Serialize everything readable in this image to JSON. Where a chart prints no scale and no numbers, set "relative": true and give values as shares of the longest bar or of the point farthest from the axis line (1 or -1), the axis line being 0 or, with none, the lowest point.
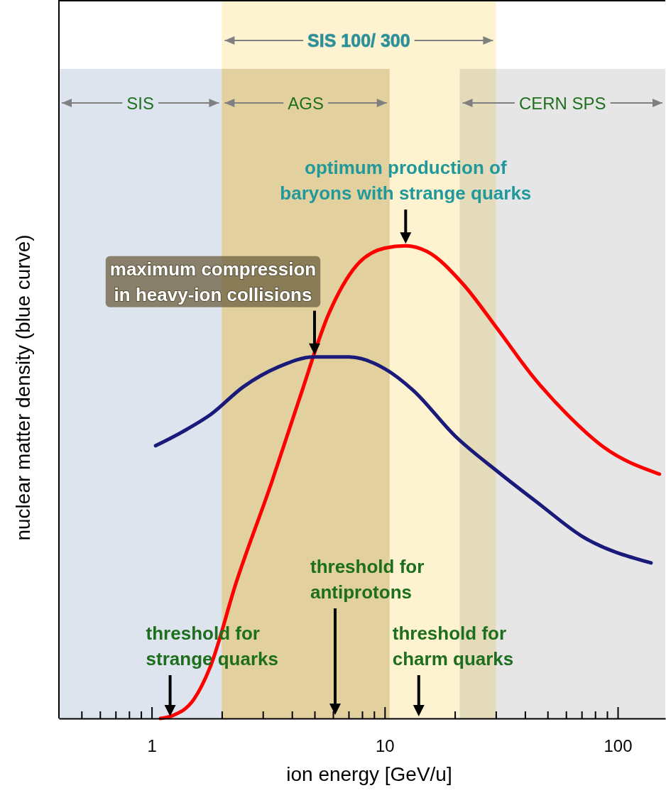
{
  "chart_data": {
    "type": "line",
    "relative": true,
    "log": "x",
    "xlabel": "ion energy [GeV/u]",
    "ylabel": "nuclear matter density (blue curve)",
    "xlim": [
      0.4,
      160
    ],
    "xticks": [
      {
        "value": 0.5,
        "label": null
      },
      {
        "value": 0.6,
        "label": null
      },
      {
        "value": 0.7,
        "label": null
      },
      {
        "value": 0.8,
        "label": null
      },
      {
        "value": 0.9,
        "label": null
      },
      1,
      {
        "value": 2,
        "label": null
      },
      {
        "value": 3,
        "label": null
      },
      {
        "value": 4,
        "label": null
      },
      {
        "value": 5,
        "label": null
      },
      {
        "value": 6,
        "label": null
      },
      {
        "value": 7,
        "label": null
      },
      {
        "value": 8,
        "label": null
      },
      {
        "value": 9,
        "label": null
      },
      10,
      {
        "value": 20,
        "label": null
      },
      {
        "value": 30,
        "label": null
      },
      {
        "value": 40,
        "label": null
      },
      {
        "value": 50,
        "label": null
      },
      {
        "value": 60,
        "label": null
      },
      {
        "value": 70,
        "label": null
      },
      {
        "value": 80,
        "label": null
      },
      {
        "value": 90,
        "label": null
      },
      100
    ],
    "series": [
      {
        "color": "#ff0000",
        "x": [
          1.09,
          1.23,
          1.52,
          1.78,
          2.31,
          3.27,
          4.33,
          5.72,
          7.56,
          10,
          12.3,
          15.2,
          21.6,
          30.6,
          43,
          61,
          87,
          151
        ],
        "values": [
          0,
          0.006,
          0.041,
          0.108,
          0.289,
          0.499,
          0.68,
          0.853,
          0.958,
          0.995,
          1,
          0.988,
          0.92,
          0.823,
          0.725,
          0.642,
          0.574,
          0.517
        ]
      },
      {
        "color": "#1a1a7a",
        "x": [
          1.04,
          1.42,
          1.78,
          2.48,
          3.51,
          4.97,
          7.05,
          10,
          13.2,
          20.1,
          30.6,
          46,
          70,
          139
        ],
        "values": [
          0.577,
          0.612,
          0.642,
          0.702,
          0.744,
          0.765,
          0.765,
          0.74,
          0.695,
          0.597,
          0.522,
          0.454,
          0.386,
          0.329
        ]
      }
    ],
    "bands": [
      {
        "axis": "x",
        "from": 2,
        "to": 30,
        "label": "SIS 100/ 300",
        "color": "#fdf3d0"
      },
      {
        "axis": "x",
        "from": 0.4,
        "to": 2,
        "label": "SIS",
        "color": "#dee4ee"
      },
      {
        "axis": "x",
        "from": 2,
        "to": 10.5,
        "label": "AGS",
        "color": "#e4dcc2"
      },
      {
        "axis": "x",
        "from": 21,
        "to": 160,
        "label": "CERN SPS",
        "color": "#e6e6e6"
      }
    ],
    "annotations": [
      {
        "text": "optimum production of\nbaryons with strange quarks",
        "x": 12.3,
        "y": 1
      },
      {
        "text": "maximum compression\nin heavy-ion collisions",
        "x": 5,
        "y": 0.765
      },
      {
        "text": "threshold for\nstrange quarks",
        "x": 1.2,
        "y": 0
      },
      "threshold for\nantiprotons",
      {
        "text": "threshold for\ncharm quarks",
        "x": 14,
        "y": 0
      }
    ]
  }
}
